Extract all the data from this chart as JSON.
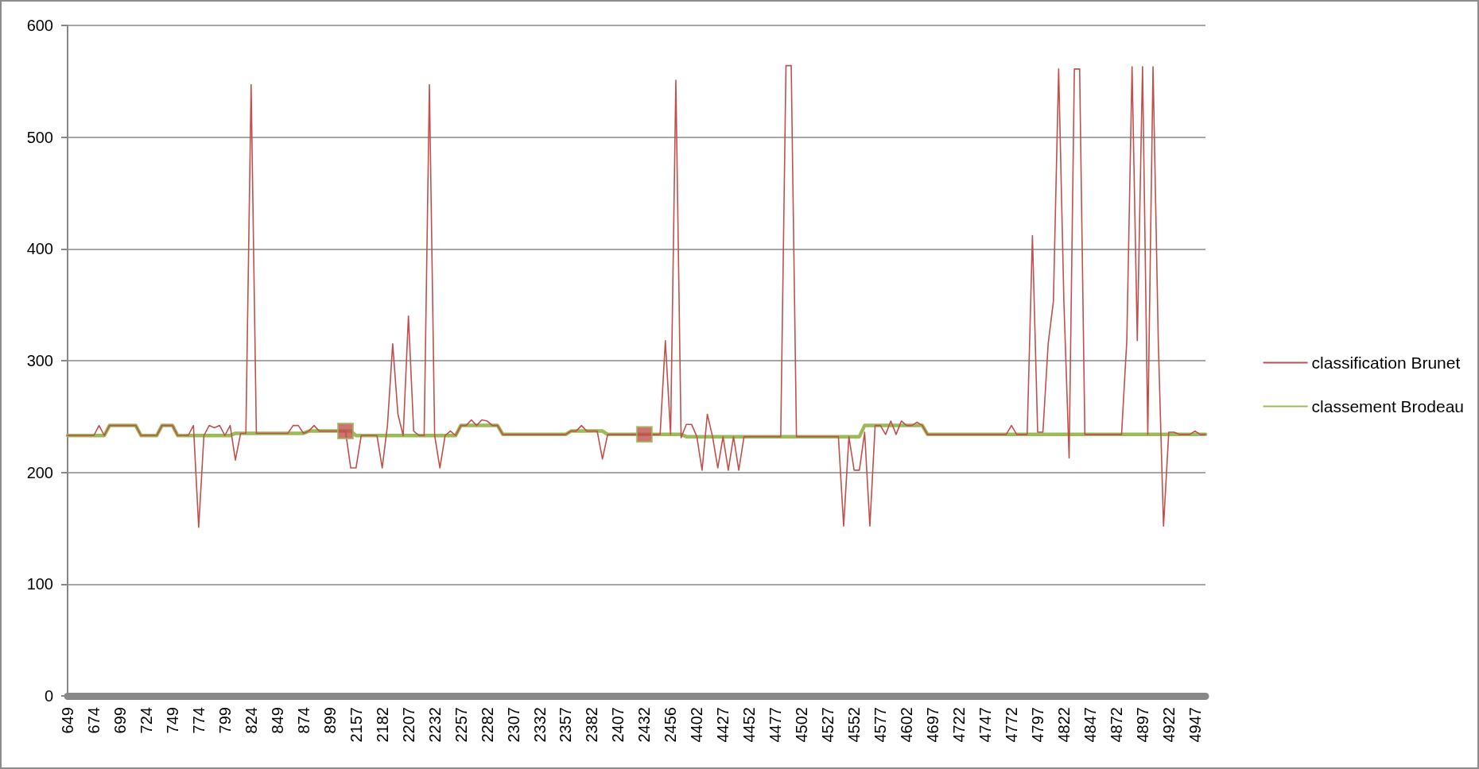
{
  "chart_data": {
    "type": "line",
    "categories": [
      "649",
      null,
      null,
      null,
      null,
      "674",
      null,
      null,
      null,
      null,
      "699",
      null,
      null,
      null,
      null,
      "724",
      null,
      null,
      null,
      null,
      "749",
      null,
      null,
      null,
      null,
      "774",
      null,
      null,
      null,
      null,
      "799",
      null,
      null,
      null,
      null,
      "824",
      null,
      null,
      null,
      null,
      "849",
      null,
      null,
      null,
      null,
      "874",
      null,
      null,
      null,
      null,
      "899",
      null,
      null,
      null,
      null,
      "2157",
      null,
      null,
      null,
      null,
      "2182",
      null,
      null,
      null,
      null,
      "2207",
      null,
      null,
      null,
      null,
      "2232",
      null,
      null,
      null,
      null,
      "2257",
      null,
      null,
      null,
      null,
      "2282",
      null,
      null,
      null,
      null,
      "2307",
      null,
      null,
      null,
      null,
      "2332",
      null,
      null,
      null,
      null,
      "2357",
      null,
      null,
      null,
      null,
      "2382",
      null,
      null,
      null,
      null,
      "2407",
      null,
      null,
      null,
      null,
      "2432",
      null,
      null,
      null,
      null,
      "2456",
      null,
      null,
      null,
      null,
      "4402",
      null,
      null,
      null,
      null,
      "4427",
      null,
      null,
      null,
      null,
      "4452",
      null,
      null,
      null,
      null,
      "4477",
      null,
      null,
      null,
      null,
      "4502",
      null,
      null,
      null,
      null,
      "4527",
      null,
      null,
      null,
      null,
      "4552",
      null,
      null,
      null,
      null,
      "4577",
      null,
      null,
      null,
      null,
      "4602",
      null,
      null,
      null,
      null,
      "4697",
      null,
      null,
      null,
      null,
      "4722",
      null,
      null,
      null,
      null,
      "4747",
      null,
      null,
      null,
      null,
      "4772",
      null,
      null,
      null,
      null,
      "4797",
      null,
      null,
      null,
      null,
      "4822",
      null,
      null,
      null,
      null,
      "4847",
      null,
      null,
      null,
      null,
      "4872",
      null,
      null,
      null,
      null,
      "4897",
      null,
      null,
      null,
      null,
      "4922",
      null,
      null,
      null,
      null,
      "4947",
      null,
      null
    ],
    "series": [
      {
        "name": "classification Brunet",
        "color": "#c0504d",
        "values": [
          233,
          233,
          233,
          233,
          233,
          233,
          242,
          233,
          242,
          242,
          242,
          242,
          242,
          242,
          233,
          233,
          233,
          233,
          242,
          242,
          242,
          233,
          233,
          233,
          242,
          151,
          233,
          242,
          240,
          242,
          233,
          242,
          211,
          235,
          235,
          547,
          235,
          235,
          235,
          235,
          235,
          235,
          235,
          242,
          242,
          235,
          237,
          242,
          237,
          237,
          237,
          237,
          237,
          237,
          204,
          204,
          233,
          233,
          233,
          233,
          204,
          242,
          315,
          252,
          233,
          340,
          237,
          233,
          233,
          547,
          233,
          204,
          233,
          237,
          233,
          242,
          242,
          247,
          242,
          247,
          246,
          242,
          242,
          234,
          234,
          234,
          234,
          234,
          234,
          234,
          234,
          234,
          234,
          234,
          234,
          234,
          237,
          237,
          242,
          237,
          237,
          237,
          212,
          234,
          234,
          234,
          234,
          234,
          234,
          234,
          234,
          234,
          234,
          234,
          318,
          234,
          551,
          231,
          243,
          243,
          232,
          202,
          252,
          232,
          204,
          232,
          202,
          232,
          202,
          232,
          232,
          232,
          232,
          232,
          232,
          232,
          232,
          564,
          564,
          232,
          232,
          232,
          232,
          232,
          232,
          232,
          232,
          232,
          152,
          232,
          202,
          202,
          236,
          152,
          242,
          242,
          234,
          246,
          234,
          246,
          242,
          242,
          245,
          242,
          234,
          234,
          234,
          234,
          234,
          234,
          234,
          234,
          234,
          234,
          234,
          234,
          234,
          234,
          234,
          234,
          242,
          234,
          234,
          234,
          412,
          236,
          236,
          315,
          353,
          561,
          353,
          213,
          561,
          561,
          234,
          234,
          234,
          234,
          234,
          234,
          234,
          234,
          318,
          563,
          318,
          563,
          234,
          563,
          318,
          152,
          236,
          236,
          234,
          234,
          234,
          237,
          234,
          234
        ]
      },
      {
        "name": "classement Brodeau",
        "color": "#9bbb59",
        "values": [
          233,
          233,
          233,
          233,
          233,
          233,
          233,
          233,
          242,
          242,
          242,
          242,
          242,
          242,
          233,
          233,
          233,
          233,
          242,
          242,
          242,
          233,
          233,
          233,
          233,
          233,
          233,
          233,
          233,
          233,
          233,
          233,
          235,
          235,
          235,
          235,
          235,
          235,
          235,
          235,
          235,
          235,
          235,
          235,
          235,
          235,
          237,
          237,
          237,
          237,
          237,
          237,
          237,
          237,
          237,
          233,
          233,
          233,
          233,
          233,
          233,
          233,
          233,
          233,
          233,
          233,
          233,
          233,
          233,
          233,
          233,
          233,
          233,
          233,
          233,
          242,
          242,
          242,
          242,
          242,
          242,
          242,
          242,
          234,
          234,
          234,
          234,
          234,
          234,
          234,
          234,
          234,
          234,
          234,
          234,
          234,
          237,
          237,
          237,
          237,
          237,
          237,
          237,
          234,
          234,
          234,
          234,
          234,
          234,
          234,
          234,
          234,
          234,
          234,
          234,
          234,
          234,
          234,
          232,
          232,
          232,
          232,
          232,
          232,
          232,
          232,
          232,
          232,
          232,
          232,
          232,
          232,
          232,
          232,
          232,
          232,
          232,
          232,
          232,
          232,
          232,
          232,
          232,
          232,
          232,
          232,
          232,
          232,
          232,
          232,
          232,
          232,
          242,
          242,
          242,
          242,
          242,
          242,
          242,
          242,
          242,
          242,
          242,
          242,
          234,
          234,
          234,
          234,
          234,
          234,
          234,
          234,
          234,
          234,
          234,
          234,
          234,
          234,
          234,
          234,
          234,
          234,
          234,
          234,
          234,
          234,
          234,
          234,
          234,
          234,
          234,
          234,
          234,
          234,
          234,
          234,
          234,
          234,
          234,
          234,
          234,
          234,
          234,
          234,
          234,
          234,
          234,
          234,
          234,
          234,
          234,
          234,
          234,
          234,
          234,
          234,
          234,
          234
        ]
      },
      {
        "type": "scatter",
        "marker": "square",
        "color": "#c0504d",
        "values": [
          null,
          null,
          null,
          null,
          null,
          null,
          null,
          null,
          null,
          null,
          null,
          null,
          null,
          null,
          null,
          null,
          null,
          null,
          null,
          null,
          null,
          null,
          null,
          null,
          null,
          null,
          null,
          null,
          null,
          null,
          null,
          null,
          null,
          null,
          null,
          null,
          null,
          null,
          null,
          null,
          null,
          null,
          null,
          null,
          null,
          null,
          null,
          null,
          null,
          null,
          null,
          null,
          null,
          237,
          null,
          null,
          null,
          null,
          null,
          null,
          null,
          null,
          null,
          null,
          null,
          null,
          null,
          null,
          null,
          null,
          null,
          null,
          null,
          null,
          null,
          null,
          null,
          null,
          null,
          null,
          null,
          null,
          null,
          null,
          null,
          null,
          null,
          null,
          null,
          null,
          null,
          null,
          null,
          null,
          null,
          null,
          null,
          null,
          null,
          null,
          null,
          null,
          null,
          null,
          null,
          null,
          null,
          null,
          null,
          null,
          234,
          null,
          null,
          null,
          null,
          null,
          null,
          null,
          null,
          null,
          null,
          null,
          null,
          null,
          null,
          null,
          null,
          null,
          null,
          null,
          null,
          null,
          null,
          null,
          null,
          null,
          null,
          null,
          null,
          null,
          null,
          null,
          null,
          null,
          null,
          null,
          null,
          null,
          null,
          null,
          null,
          null,
          null,
          null,
          null,
          null,
          null,
          null,
          null,
          null,
          null,
          null,
          null,
          null,
          null,
          null,
          null,
          null,
          null,
          null,
          null,
          null,
          null,
          null,
          null,
          null,
          null,
          null,
          null,
          null,
          null,
          null,
          null,
          null,
          null,
          null,
          null,
          null,
          null,
          null,
          null,
          null,
          null,
          null,
          null,
          null,
          null,
          null,
          null,
          null,
          null,
          null,
          null,
          null,
          null,
          null,
          null,
          null,
          null,
          null,
          null,
          null,
          null,
          null,
          null,
          null,
          null,
          null
        ]
      }
    ],
    "ylim": [
      0,
      600
    ],
    "yticks": [
      0,
      100,
      200,
      300,
      400,
      500,
      600
    ],
    "grid": "y",
    "legend": "right",
    "marker": "none"
  }
}
